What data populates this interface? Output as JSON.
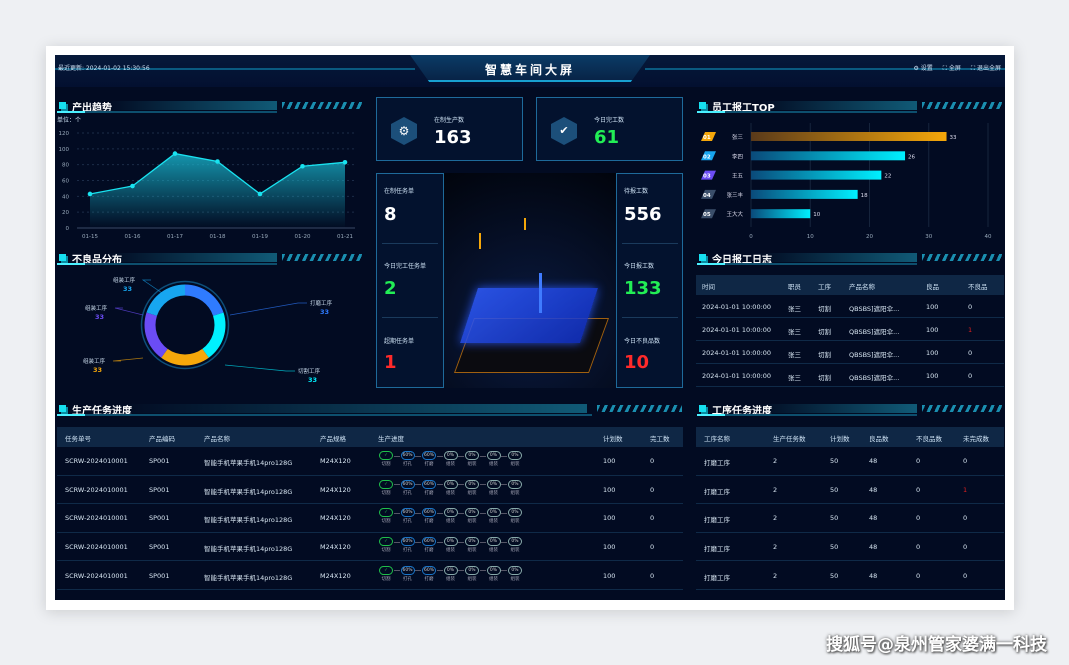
{
  "header": {
    "last_update": "最近更新: 2024-01-02  15:30:56",
    "title": "智慧车间大屏",
    "settings": "设置",
    "fullscreen": "全屏",
    "exit_fullscreen": "退出全屏"
  },
  "output_trend": {
    "title": "产出趋势",
    "unit": "单位：个",
    "chart_data": {
      "type": "area",
      "x": [
        "01-15",
        "01-16",
        "01-17",
        "01-18",
        "01-19",
        "01-20",
        "01-21"
      ],
      "values": [
        43,
        53,
        94,
        84,
        43,
        78,
        83
      ],
      "ylim": [
        0,
        120
      ],
      "yticks": [
        0,
        20,
        40,
        60,
        80,
        100,
        120
      ],
      "grid": true,
      "color": "#19e3f0"
    }
  },
  "defect_dist": {
    "title": "不良品分布",
    "chart_data": {
      "type": "pie",
      "donut": true,
      "slices": [
        {
          "label": "打磨工序",
          "value": 33,
          "color": "#2f7bff"
        },
        {
          "label": "切割工序",
          "value": 33,
          "color": "#00f0ff"
        },
        {
          "label": "组装工序",
          "value": 33,
          "color": "#f5a70a"
        },
        {
          "label": "组装工序",
          "value": 33,
          "color": "#6b4cf5"
        },
        {
          "label": "组装工序",
          "value": 33,
          "color": "#17a6f0"
        }
      ]
    }
  },
  "kpi": {
    "in_production": {
      "label": "在制生产数",
      "value": "163"
    },
    "completed_today": {
      "label": "今日完工数",
      "value": "61"
    },
    "tasks_in_progress": {
      "label": "在制任务单",
      "value": "8"
    },
    "tasks_completed_today": {
      "label": "今日完工任务单",
      "value": "2"
    },
    "tasks_overdue": {
      "label": "超期任务单",
      "value": "1"
    },
    "pending_report": {
      "label": "待报工数",
      "value": "556"
    },
    "reported_today": {
      "label": "今日报工数",
      "value": "133"
    },
    "defects_today": {
      "label": "今日不良品数",
      "value": "10"
    }
  },
  "top_workers": {
    "title": "员工报工TOP",
    "chart_data": {
      "type": "bar",
      "orientation": "horizontal",
      "categories": [
        "张三",
        "李四",
        "王五",
        "张三丰",
        "王大大"
      ],
      "ranks": [
        "01",
        "02",
        "03",
        "04",
        "05"
      ],
      "values": [
        33,
        26,
        22,
        18,
        10
      ],
      "xlim": [
        0,
        40
      ],
      "xticks": [
        0,
        10,
        20,
        30,
        40
      ],
      "rank_colors": [
        "#f5a70a",
        "#17a6f0",
        "#6b4cf5",
        "#3a4e6a",
        "#3a4e6a"
      ]
    }
  },
  "report_log": {
    "title": "今日报工日志",
    "columns": [
      "时间",
      "职员",
      "工序",
      "产品名称",
      "良品",
      "不良品"
    ],
    "rows": [
      [
        "2024-01-01 10:00:00",
        "张三",
        "切割",
        "QBSBS]遮阳伞...",
        "100",
        "0"
      ],
      [
        "2024-01-01 10:00:00",
        "张三",
        "切割",
        "QBSBS]遮阳伞...",
        "100",
        "1"
      ],
      [
        "2024-01-01 10:00:00",
        "张三",
        "切割",
        "QBSBS]遮阳伞...",
        "100",
        "0"
      ],
      [
        "2024-01-01 10:00:00",
        "张三",
        "切割",
        "QBSBS]遮阳伞...",
        "100",
        "0"
      ]
    ]
  },
  "task_progress": {
    "title": "生产任务进度",
    "columns": [
      "任务单号",
      "产品编码",
      "产品名称",
      "产品规格",
      "生产进度",
      "计划数",
      "完工数"
    ],
    "steps": [
      {
        "label": "切割",
        "value": "✓",
        "state": "done"
      },
      {
        "label": "打孔",
        "value": "60%",
        "state": "prog"
      },
      {
        "label": "打磨",
        "value": "60%",
        "state": "prog"
      },
      {
        "label": "组装",
        "value": "0%",
        "state": "todo"
      },
      {
        "label": "组装",
        "value": "0%",
        "state": "todo"
      },
      {
        "label": "组装",
        "value": "0%",
        "state": "todo"
      },
      {
        "label": "组装",
        "value": "0%",
        "state": "todo"
      }
    ],
    "rows": [
      [
        "SCRW-2024010001",
        "SP001",
        "智能手机苹果手机14pro128G",
        "M24X120",
        "100",
        "0"
      ],
      [
        "SCRW-2024010001",
        "SP001",
        "智能手机苹果手机14pro128G",
        "M24X120",
        "100",
        "0"
      ],
      [
        "SCRW-2024010001",
        "SP001",
        "智能手机苹果手机14pro128G",
        "M24X120",
        "100",
        "0"
      ],
      [
        "SCRW-2024010001",
        "SP001",
        "智能手机苹果手机14pro128G",
        "M24X120",
        "100",
        "0"
      ],
      [
        "SCRW-2024010001",
        "SP001",
        "智能手机苹果手机14pro128G",
        "M24X120",
        "100",
        "0"
      ]
    ]
  },
  "process_progress": {
    "title": "工序任务进度",
    "columns": [
      "工序名称",
      "生产任务数",
      "计划数",
      "良品数",
      "不良品数",
      "未完成数"
    ],
    "rows": [
      [
        "打磨工序",
        "2",
        "50",
        "48",
        "0",
        "0"
      ],
      [
        "打磨工序",
        "2",
        "50",
        "48",
        "0",
        "1"
      ],
      [
        "打磨工序",
        "2",
        "50",
        "48",
        "0",
        "0"
      ],
      [
        "打磨工序",
        "2",
        "50",
        "48",
        "0",
        "0"
      ],
      [
        "打磨工序",
        "2",
        "50",
        "48",
        "0",
        "0"
      ]
    ]
  },
  "watermark": "搜狐号@泉州管家婆满一科技"
}
